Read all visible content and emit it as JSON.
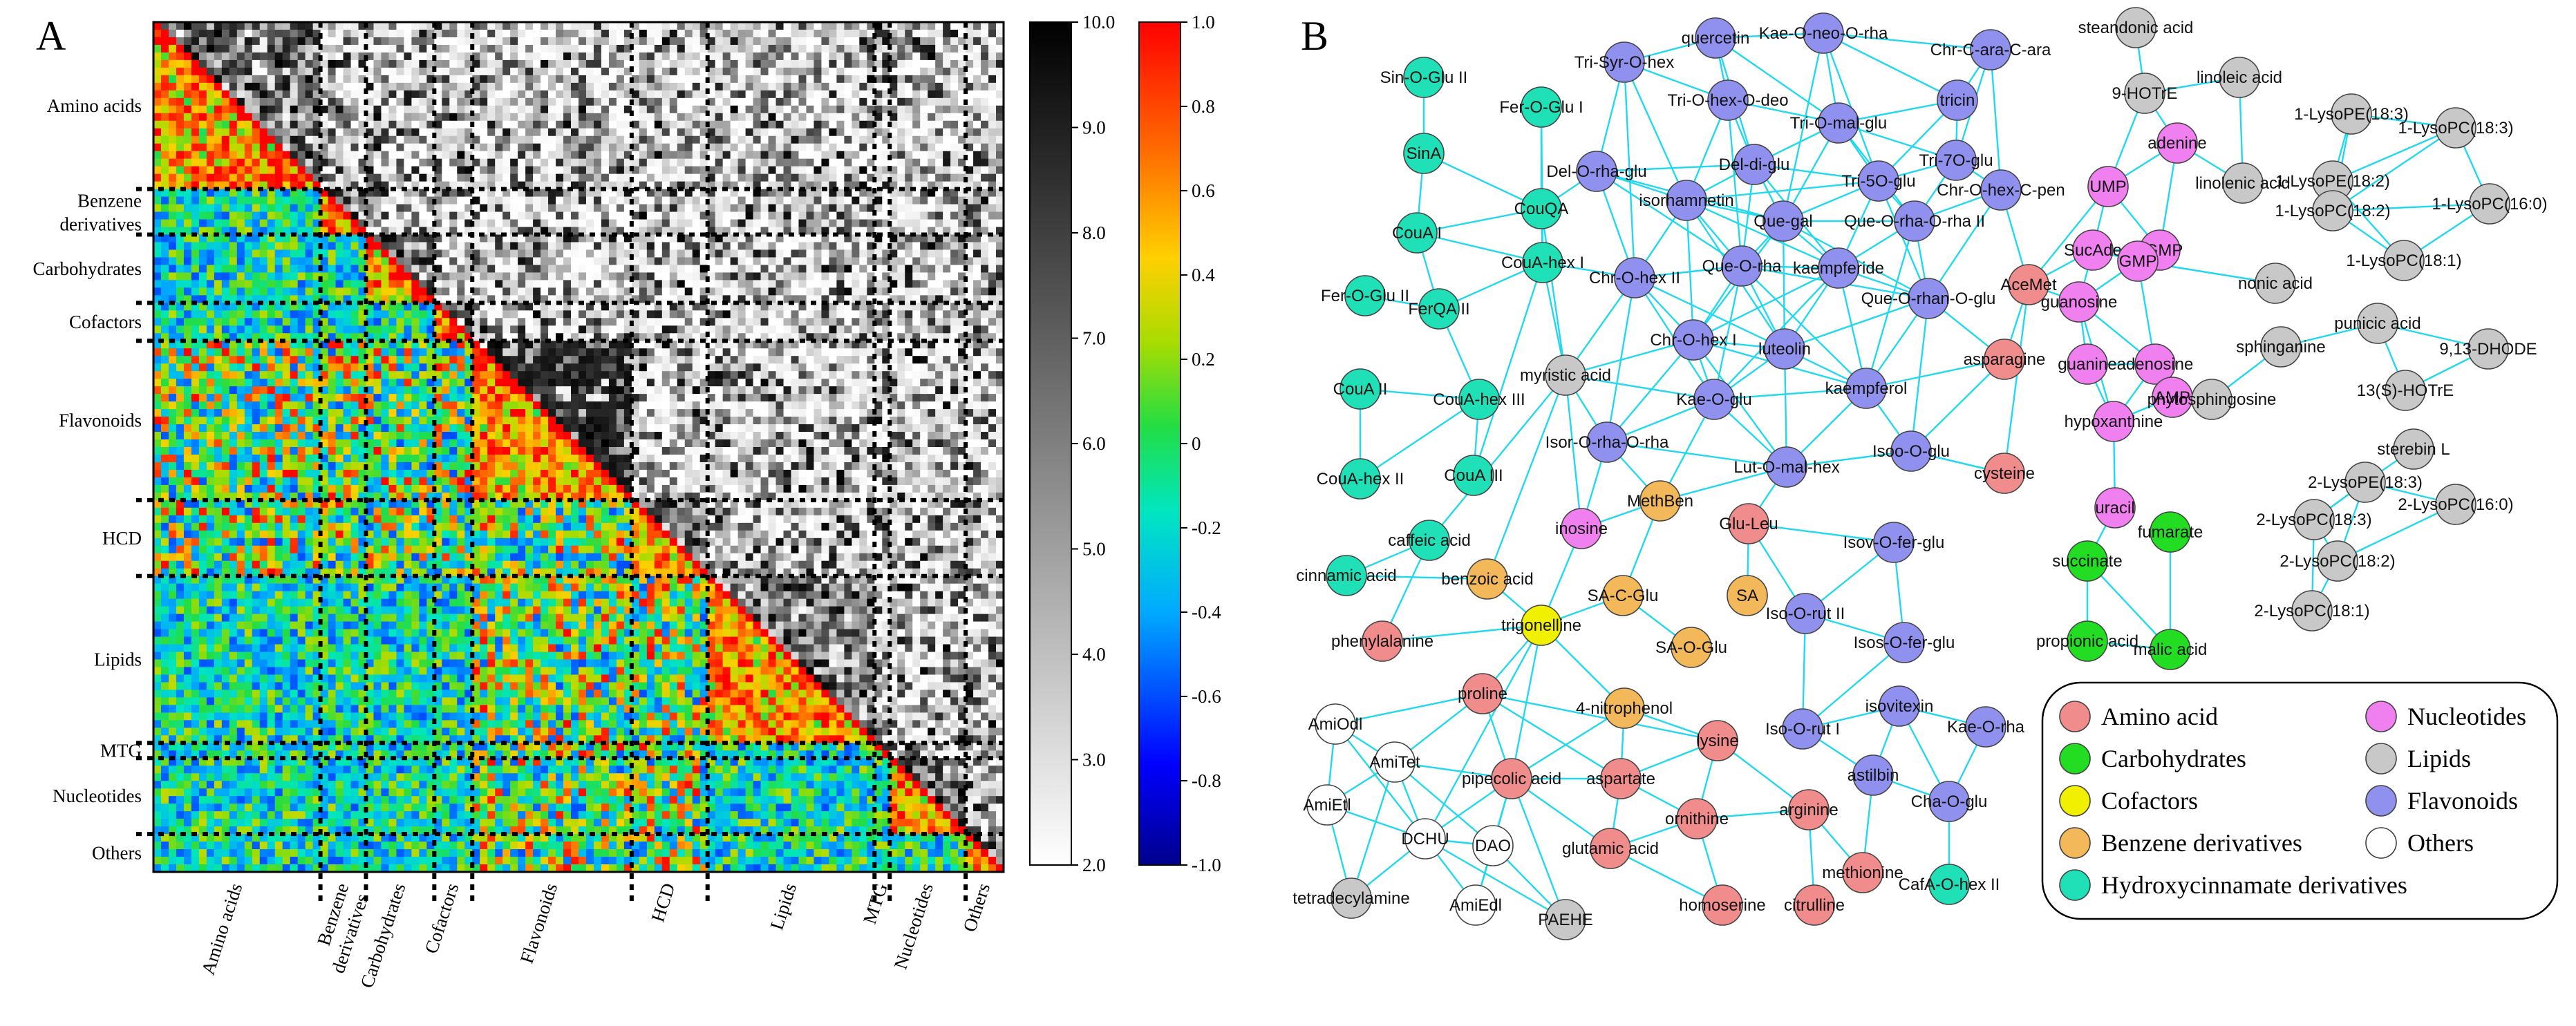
{
  "panelA": {
    "letter": "A",
    "groups": [
      "Amino acids",
      "Benzene derivatives",
      "Carbohydrates",
      "Cofactors",
      "Flavonoids",
      "HCD",
      "Lipids",
      "MTG",
      "Nucleotides",
      "Others"
    ],
    "groups_left": [
      "Amino acids",
      "Benzene\nderivatives",
      "Carbohydrates",
      "Cofactors",
      "Flavonoids",
      "HCD",
      "Lipids",
      "MTG",
      "Nucleotides",
      "Others"
    ],
    "group_counts": [
      22,
      6,
      9,
      5,
      21,
      10,
      22,
      2,
      10,
      5
    ],
    "colorbar_gray": {
      "ticks": [
        "10.0",
        "9.0",
        "8.0",
        "7.0",
        "6.0",
        "5.0",
        "4.0",
        "3.0",
        "2.0"
      ]
    },
    "colorbar_color": {
      "ticks": [
        "1.0",
        "0.8",
        "0.6",
        "0.4",
        "0.2",
        "0",
        "-0.2",
        "-0.4",
        "-0.6",
        "-0.8",
        "-1.0"
      ]
    }
  },
  "panelB": {
    "letter": "B",
    "categories": [
      {
        "key": "amino",
        "name": "Amino acid",
        "color": "#f08c8c"
      },
      {
        "key": "carb",
        "name": "Carbohydrates",
        "color": "#22dd22"
      },
      {
        "key": "cof",
        "name": "Cofactors",
        "color": "#f0f000"
      },
      {
        "key": "benz",
        "name": "Benzene derivatives",
        "color": "#f2b85a"
      },
      {
        "key": "hcd",
        "name": "Hydroxycinnamate derivatives",
        "color": "#20e0b8"
      },
      {
        "key": "nuc",
        "name": "Nucleotides",
        "color": "#f07ff0"
      },
      {
        "key": "lip",
        "name": "Lipids",
        "color": "#c8c8c8"
      },
      {
        "key": "flav",
        "name": "Flavonoids",
        "color": "#9090ee"
      },
      {
        "key": "oth",
        "name": "Others",
        "color": "#ffffff"
      }
    ],
    "legend_order": [
      "amino",
      "nuc",
      "carb",
      "lip",
      "cof",
      "flav",
      "benz",
      "oth",
      "hcd"
    ],
    "nodes": [
      {
        "id": "SinOGluII",
        "label": "Sin-O-Glu II",
        "c": "hcd"
      },
      {
        "id": "FerOGluI",
        "label": "Fer-O-Glu I",
        "c": "hcd"
      },
      {
        "id": "SinA",
        "label": "SinA",
        "c": "hcd"
      },
      {
        "id": "CouQA",
        "label": "CouQA",
        "c": "hcd"
      },
      {
        "id": "CouAI",
        "label": "CouA I",
        "c": "hcd"
      },
      {
        "id": "CouAhexI",
        "label": "CouA-hex I",
        "c": "hcd"
      },
      {
        "id": "FerOGluII",
        "label": "Fer-O-Glu II",
        "c": "hcd"
      },
      {
        "id": "FerQAII",
        "label": "FerQA II",
        "c": "hcd"
      },
      {
        "id": "CouAII",
        "label": "CouA II",
        "c": "hcd"
      },
      {
        "id": "CouAhexIII",
        "label": "CouA-hex III",
        "c": "hcd"
      },
      {
        "id": "CouAhexII",
        "label": "CouA-hex II",
        "c": "hcd"
      },
      {
        "id": "CouAIII",
        "label": "CouA III",
        "c": "hcd"
      },
      {
        "id": "caffeic",
        "label": "caffeic acid",
        "c": "hcd"
      },
      {
        "id": "cinnamic",
        "label": "cinnamic acid",
        "c": "hcd"
      },
      {
        "id": "CafAOhexII",
        "label": "CafA-O-hex II",
        "c": "hcd"
      },
      {
        "id": "myristic",
        "label": "myristic acid",
        "c": "lip"
      },
      {
        "id": "TriSyrOhex",
        "label": "Tri-Syr-O-hex",
        "c": "flav"
      },
      {
        "id": "quercetin",
        "label": "quercetin",
        "c": "flav"
      },
      {
        "id": "KaeOneoOrha",
        "label": "Kae-O-neo-O-rha",
        "c": "flav"
      },
      {
        "id": "ChrCaraCara",
        "label": "Chr-C-ara-C-ara",
        "c": "flav"
      },
      {
        "id": "TriOhexOdeo",
        "label": "Tri-O-hex-O-deo",
        "c": "flav"
      },
      {
        "id": "TriOmalglu",
        "label": "Tri-O-mal-glu",
        "c": "flav"
      },
      {
        "id": "tricin",
        "label": "tricin",
        "c": "flav"
      },
      {
        "id": "DelOrhaglu",
        "label": "Del-O-rha-glu",
        "c": "flav"
      },
      {
        "id": "Deldiglu",
        "label": "Del-di-glu",
        "c": "flav"
      },
      {
        "id": "Tri5Oglu",
        "label": "Tri-5O-glu",
        "c": "flav"
      },
      {
        "id": "Tri7Oglu",
        "label": "Tri-7O-glu",
        "c": "flav"
      },
      {
        "id": "isorhamnetin",
        "label": "isorhamnetin",
        "c": "flav"
      },
      {
        "id": "Quegal",
        "label": "Que-gal",
        "c": "flav"
      },
      {
        "id": "QueOrhaOrhaII",
        "label": "Que-O-rha-O-rha II",
        "c": "flav"
      },
      {
        "id": "ChrOhexCpen",
        "label": "Chr-O-hex-C-pen",
        "c": "flav"
      },
      {
        "id": "ChrOhexII",
        "label": "Chr-O-hex II",
        "c": "flav"
      },
      {
        "id": "QueOrha",
        "label": "Que-O-rha",
        "c": "flav"
      },
      {
        "id": "kaempferide",
        "label": "kaempferide",
        "c": "flav"
      },
      {
        "id": "QueOrhanOglu",
        "label": "Que-O-rhan-O-glu",
        "c": "flav"
      },
      {
        "id": "ChrOhexI",
        "label": "Chr-O-hex I",
        "c": "flav"
      },
      {
        "id": "luteolin",
        "label": "luteolin",
        "c": "flav"
      },
      {
        "id": "kaempferol",
        "label": "kaempferol",
        "c": "flav"
      },
      {
        "id": "KaeOglu",
        "label": "Kae-O-glu",
        "c": "flav"
      },
      {
        "id": "IsorOrhaOrha",
        "label": "Isor-O-rha-O-rha",
        "c": "flav"
      },
      {
        "id": "LutOmalhex",
        "label": "Lut-O-mal-hex",
        "c": "flav"
      },
      {
        "id": "IsooOglu",
        "label": "Isoo-O-glu",
        "c": "flav"
      },
      {
        "id": "IsovOferglu",
        "label": "Isov-O-fer-glu",
        "c": "flav"
      },
      {
        "id": "IsoOrutII",
        "label": "Iso-O-rut II",
        "c": "flav"
      },
      {
        "id": "IsosOferglu",
        "label": "Isos-O-fer-glu",
        "c": "flav"
      },
      {
        "id": "IsoOrutI",
        "label": "Iso-O-rut I",
        "c": "flav"
      },
      {
        "id": "isovitexin",
        "label": "isovitexin",
        "c": "flav"
      },
      {
        "id": "KaeOrha",
        "label": "Kae-O-rha",
        "c": "flav"
      },
      {
        "id": "astilbin",
        "label": "astilbin",
        "c": "flav"
      },
      {
        "id": "ChaOglu",
        "label": "Cha-O-glu",
        "c": "flav"
      },
      {
        "id": "asparagine",
        "label": "asparagine",
        "c": "amino"
      },
      {
        "id": "cysteine",
        "label": "cysteine",
        "c": "amino"
      },
      {
        "id": "AceMet",
        "label": "AceMet",
        "c": "amino"
      },
      {
        "id": "GluLeu",
        "label": "Glu-Leu",
        "c": "amino"
      },
      {
        "id": "phenylalanine",
        "label": "phenylalanine",
        "c": "amino"
      },
      {
        "id": "proline",
        "label": "proline",
        "c": "amino"
      },
      {
        "id": "pipecolic",
        "label": "pipecolic acid",
        "c": "amino"
      },
      {
        "id": "lysine",
        "label": "lysine",
        "c": "amino"
      },
      {
        "id": "aspartate",
        "label": "aspartate",
        "c": "amino"
      },
      {
        "id": "ornithine",
        "label": "ornithine",
        "c": "amino"
      },
      {
        "id": "arginine",
        "label": "arginine",
        "c": "amino"
      },
      {
        "id": "glutamic",
        "label": "glutamic acid",
        "c": "amino"
      },
      {
        "id": "methionine",
        "label": "methionine",
        "c": "amino"
      },
      {
        "id": "homoserine",
        "label": "homoserine",
        "c": "amino"
      },
      {
        "id": "citrulline",
        "label": "citrulline",
        "c": "amino"
      },
      {
        "id": "MethBen",
        "label": "MethBen",
        "c": "benz"
      },
      {
        "id": "benzoic",
        "label": "benzoic acid",
        "c": "benz"
      },
      {
        "id": "SACGlu",
        "label": "SA-C-Glu",
        "c": "benz"
      },
      {
        "id": "SA",
        "label": "SA",
        "c": "benz"
      },
      {
        "id": "SAOGlu",
        "label": "SA-O-Glu",
        "c": "benz"
      },
      {
        "id": "nitrophenol",
        "label": "4-nitrophenol",
        "c": "benz"
      },
      {
        "id": "trigonelline",
        "label": "trigonelline",
        "c": "cof"
      },
      {
        "id": "inosine",
        "label": "inosine",
        "c": "nuc"
      },
      {
        "id": "UMP",
        "label": "UMP",
        "c": "nuc"
      },
      {
        "id": "adenine",
        "label": "adenine",
        "c": "nuc"
      },
      {
        "id": "cGMP",
        "label": "cGMP",
        "c": "nuc"
      },
      {
        "id": "SucAde",
        "label": "SucAde",
        "c": "nuc"
      },
      {
        "id": "GMP",
        "label": "GMP",
        "c": "nuc"
      },
      {
        "id": "guanosine",
        "label": "guanosine",
        "c": "nuc"
      },
      {
        "id": "adenosine",
        "label": "adenosine",
        "c": "nuc"
      },
      {
        "id": "guanine",
        "label": "guanine",
        "c": "nuc"
      },
      {
        "id": "AMP",
        "label": "AMP",
        "c": "nuc"
      },
      {
        "id": "hypoxanthine",
        "label": "hypoxanthine",
        "c": "nuc"
      },
      {
        "id": "uracil",
        "label": "uracil",
        "c": "nuc"
      },
      {
        "id": "succinate",
        "label": "succinate",
        "c": "carb"
      },
      {
        "id": "fumarate",
        "label": "fumarate",
        "c": "carb"
      },
      {
        "id": "propionic",
        "label": "propionic acid",
        "c": "carb"
      },
      {
        "id": "malic",
        "label": "malic acid",
        "c": "carb"
      },
      {
        "id": "steandonic",
        "label": "steandonic acid",
        "c": "lip"
      },
      {
        "id": "HOTrE9",
        "label": "9-HOTrE",
        "c": "lip"
      },
      {
        "id": "linoleic",
        "label": "linoleic acid",
        "c": "lip"
      },
      {
        "id": "linolenic",
        "label": "linolenic acid",
        "c": "lip"
      },
      {
        "id": "LPE183a",
        "label": "1-LysoPE(18:3)",
        "c": "lip"
      },
      {
        "id": "LPE182",
        "label": "1-LysoPE(18:2)",
        "c": "lip"
      },
      {
        "id": "LPC183a",
        "label": "1-LysoPC(18:3)",
        "c": "lip"
      },
      {
        "id": "LPC182a",
        "label": "1-LysoPC(18:2)",
        "c": "lip"
      },
      {
        "id": "LPC160a",
        "label": "1-LysoPC(16:0)",
        "c": "lip"
      },
      {
        "id": "LPC181a",
        "label": "1-LysoPC(18:1)",
        "c": "lip"
      },
      {
        "id": "nonic",
        "label": "nonic acid",
        "c": "lip"
      },
      {
        "id": "punicic",
        "label": "punicic acid",
        "c": "lip"
      },
      {
        "id": "sphinganine",
        "label": "sphinganine",
        "c": "lip"
      },
      {
        "id": "DHODE",
        "label": "9,13-DHODE",
        "c": "lip"
      },
      {
        "id": "phytosphingosine",
        "label": "phytosphingosine",
        "c": "lip"
      },
      {
        "id": "HOTrE13",
        "label": "13(S)-HOTrE",
        "c": "lip"
      },
      {
        "id": "sterebin",
        "label": "sterebin L",
        "c": "lip"
      },
      {
        "id": "LPE183b",
        "label": "2-LysoPE(18:3)",
        "c": "lip"
      },
      {
        "id": "LPC160b",
        "label": "2-LysoPC(16:0)",
        "c": "lip"
      },
      {
        "id": "LPC183b",
        "label": "2-LysoPC(18:3)",
        "c": "lip"
      },
      {
        "id": "LPC182b",
        "label": "2-LysoPC(18:2)",
        "c": "lip"
      },
      {
        "id": "LPC181b",
        "label": "2-LysoPC(18:1)",
        "c": "lip"
      },
      {
        "id": "tetradecylamine",
        "label": "tetradecylamine",
        "c": "lip"
      },
      {
        "id": "PAEHE",
        "label": "PAEHE",
        "c": "lip"
      },
      {
        "id": "AmiOdl",
        "label": "AmiOdl",
        "c": "oth"
      },
      {
        "id": "AmiTet",
        "label": "AmiTet",
        "c": "oth"
      },
      {
        "id": "AmiEtl",
        "label": "AmiEtl",
        "c": "oth"
      },
      {
        "id": "DCHU",
        "label": "DCHU",
        "c": "oth"
      },
      {
        "id": "DAO",
        "label": "DAO",
        "c": "oth"
      },
      {
        "id": "AmiEdl",
        "label": "AmiEdl",
        "c": "oth"
      }
    ]
  }
}
